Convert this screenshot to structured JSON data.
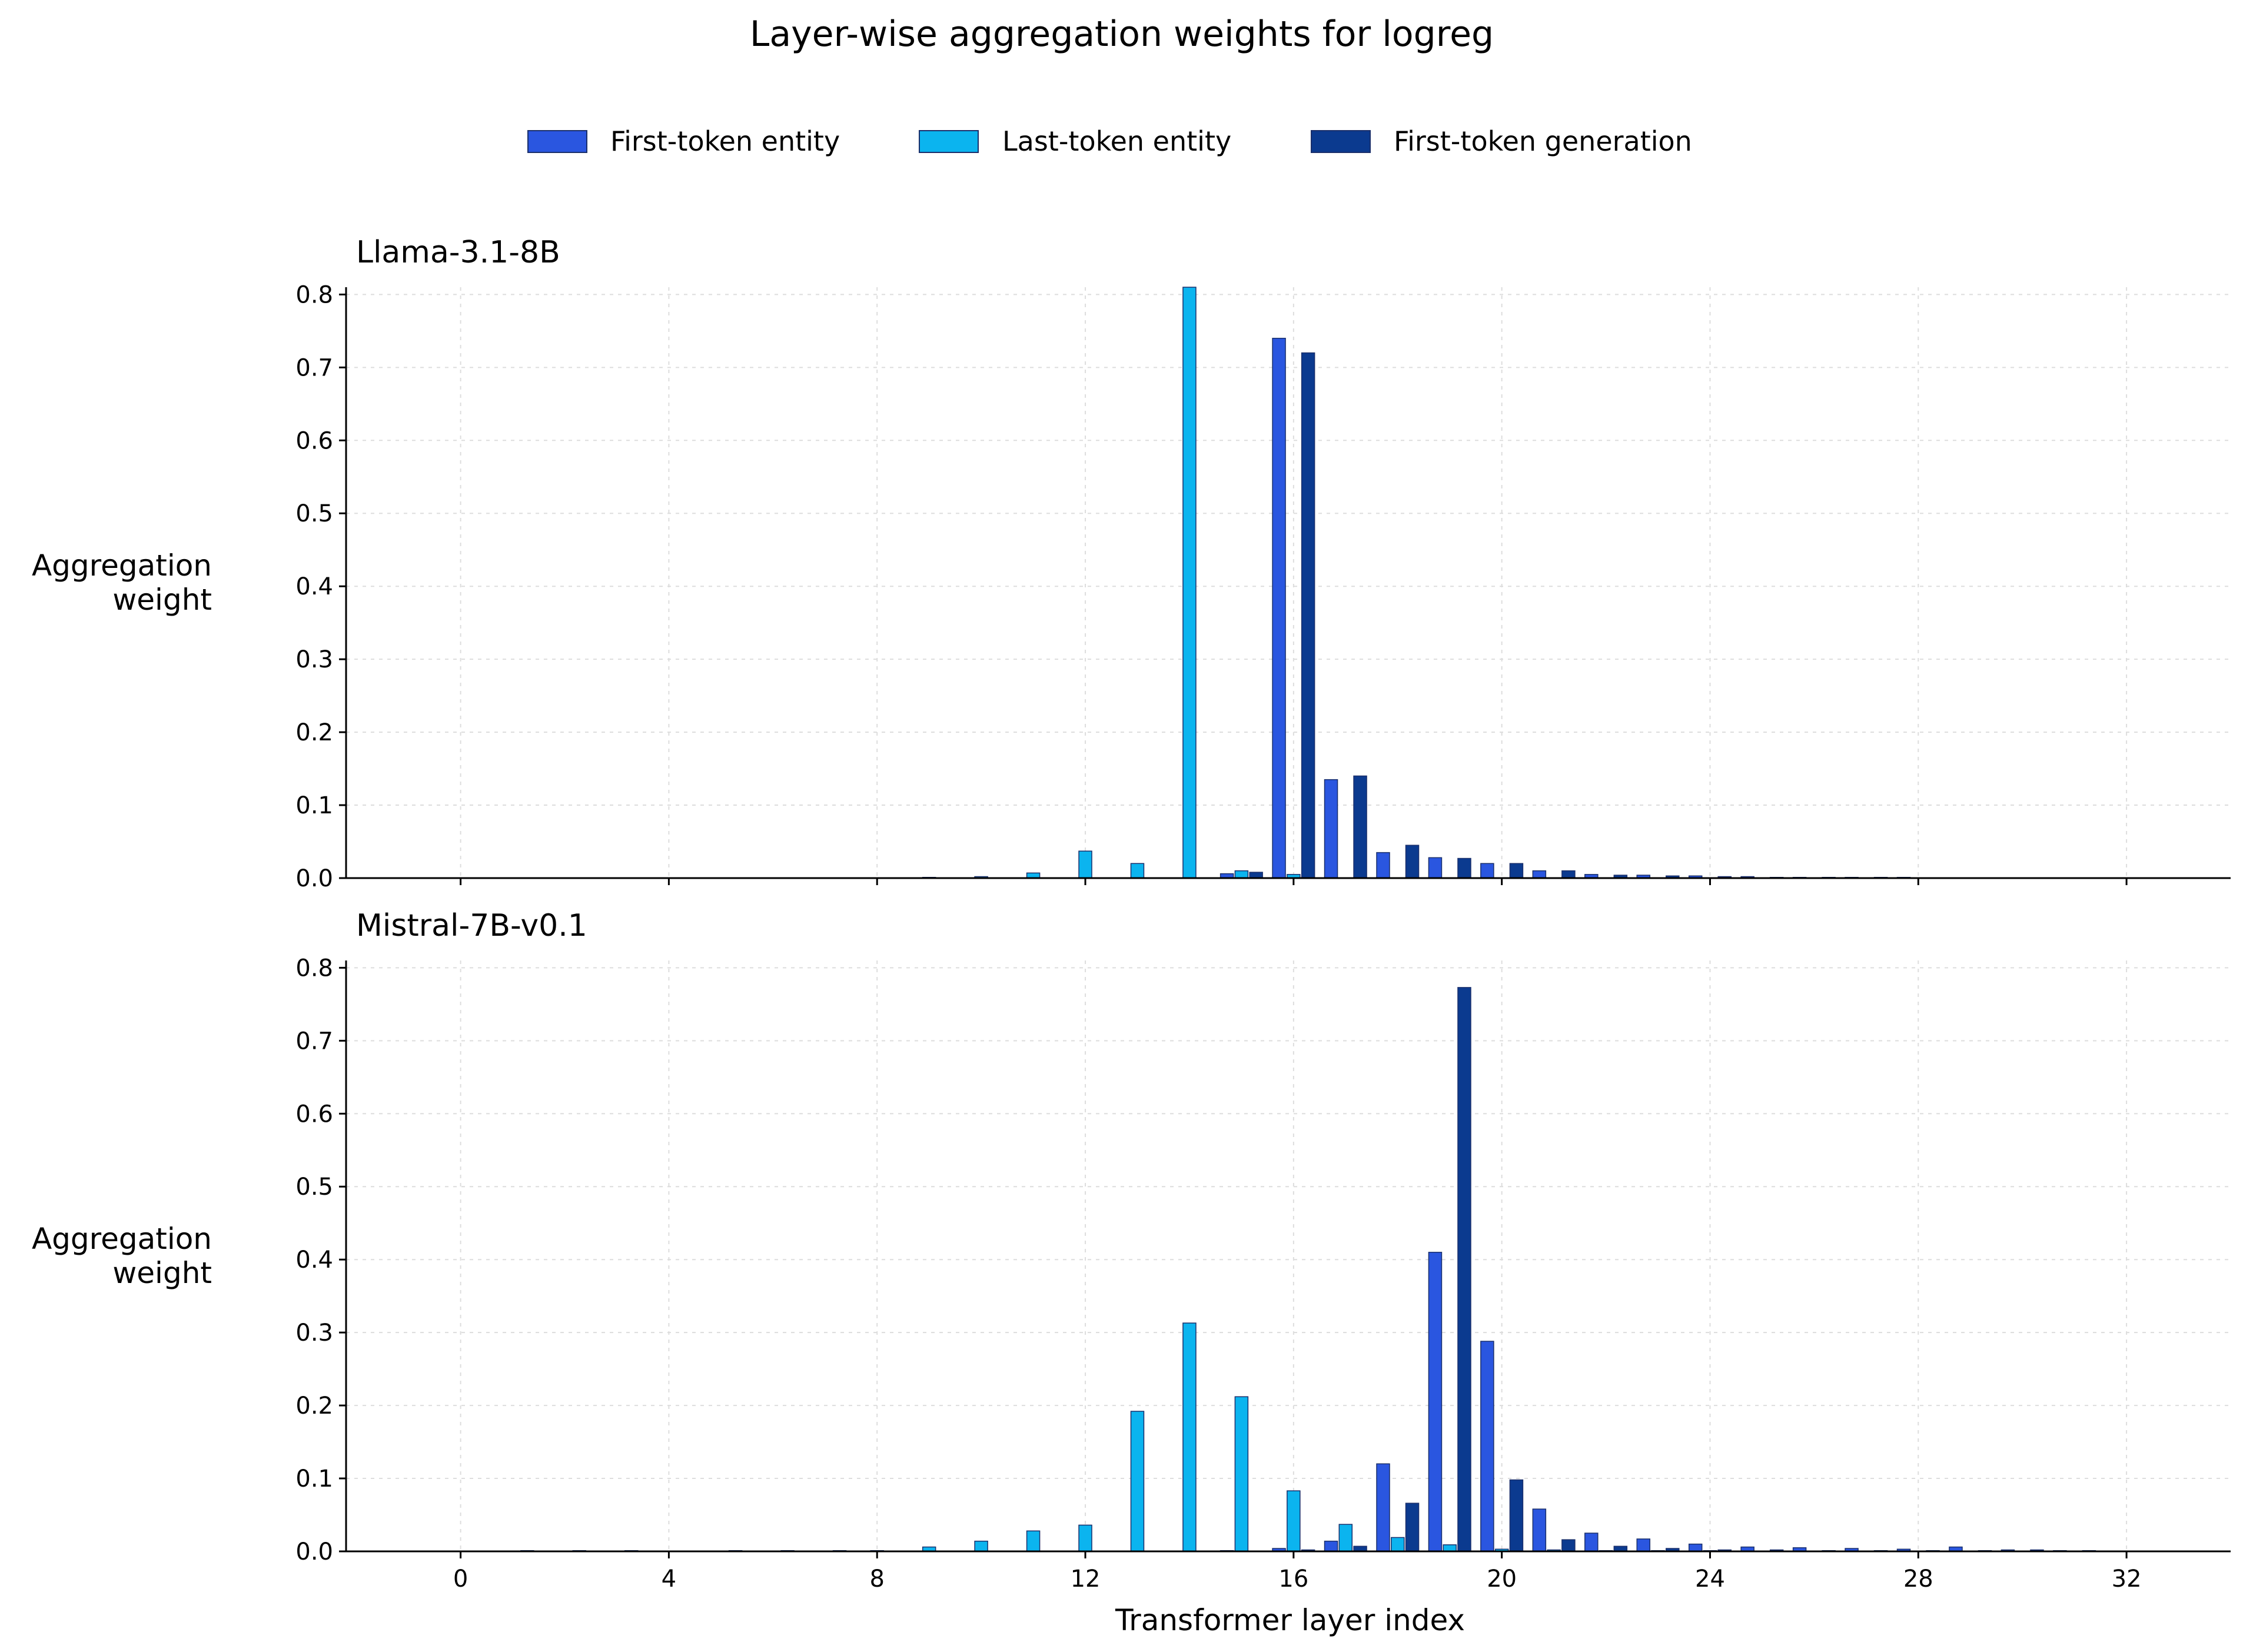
{
  "figure": {
    "title": "Layer-wise aggregation weights for logreg",
    "xlabel": "Transformer layer index"
  },
  "legend": [
    {
      "label": "First-token entity",
      "color": "#2a56e0"
    },
    {
      "label": "Last-token entity",
      "color": "#0bb4ef"
    },
    {
      "label": "First-token generation",
      "color": "#0b3a8f"
    }
  ],
  "chart_data": [
    {
      "type": "bar",
      "title": "Llama-3.1-8B",
      "ylabel": "Aggregation weight",
      "xlabel": "",
      "xlim": [
        -2.2,
        34
      ],
      "ylim": [
        0,
        0.81
      ],
      "xticks": [
        0,
        4,
        8,
        12,
        16,
        20,
        24,
        28,
        32
      ],
      "yticks": [
        0.0,
        0.1,
        0.2,
        0.3,
        0.4,
        0.5,
        0.6,
        0.7,
        0.8
      ],
      "grid": true,
      "x": [
        0,
        1,
        2,
        3,
        4,
        5,
        6,
        7,
        8,
        9,
        10,
        11,
        12,
        13,
        14,
        15,
        16,
        17,
        18,
        19,
        20,
        21,
        22,
        23,
        24,
        25,
        26,
        27,
        28,
        29,
        30,
        31
      ],
      "series": [
        {
          "name": "First-token entity",
          "values": [
            0,
            0,
            0,
            0,
            0,
            0,
            0,
            0,
            0,
            0,
            0,
            0,
            0,
            0,
            0,
            0.006,
            0.74,
            0.135,
            0.035,
            0.028,
            0.02,
            0.01,
            0.005,
            0.004,
            0.003,
            0.002,
            0.001,
            0.001,
            0.001,
            0,
            0,
            0
          ]
        },
        {
          "name": "Last-token entity",
          "values": [
            0,
            0,
            0,
            0,
            0,
            0,
            0,
            0,
            0,
            0.001,
            0.002,
            0.007,
            0.037,
            0.02,
            0.81,
            0.01,
            0.005,
            0,
            0,
            0,
            0,
            0,
            0,
            0,
            0,
            0,
            0,
            0,
            0,
            0,
            0,
            0
          ]
        },
        {
          "name": "First-token generation",
          "values": [
            0,
            0,
            0,
            0,
            0,
            0,
            0,
            0,
            0,
            0,
            0,
            0,
            0,
            0,
            0,
            0.008,
            0.72,
            0.14,
            0.045,
            0.027,
            0.02,
            0.01,
            0.004,
            0.003,
            0.002,
            0.001,
            0.001,
            0.001,
            0,
            0,
            0,
            0
          ]
        }
      ]
    },
    {
      "type": "bar",
      "title": "Mistral-7B-v0.1",
      "ylabel": "Aggregation weight",
      "xlabel": "Transformer layer index",
      "xlim": [
        -2.2,
        34
      ],
      "ylim": [
        0,
        0.81
      ],
      "xticks": [
        0,
        4,
        8,
        12,
        16,
        20,
        24,
        28,
        32
      ],
      "yticks": [
        0.0,
        0.1,
        0.2,
        0.3,
        0.4,
        0.5,
        0.6,
        0.7,
        0.8
      ],
      "grid": true,
      "x": [
        0,
        1,
        2,
        3,
        4,
        5,
        6,
        7,
        8,
        9,
        10,
        11,
        12,
        13,
        14,
        15,
        16,
        17,
        18,
        19,
        20,
        21,
        22,
        23,
        24,
        25,
        26,
        27,
        28,
        29,
        30,
        31
      ],
      "series": [
        {
          "name": "First-token entity",
          "values": [
            0,
            0,
            0,
            0,
            0,
            0,
            0,
            0,
            0,
            0,
            0,
            0,
            0,
            0,
            0,
            0.001,
            0.004,
            0.014,
            0.12,
            0.41,
            0.288,
            0.058,
            0.025,
            0.017,
            0.01,
            0.006,
            0.005,
            0.004,
            0.003,
            0.006,
            0.002,
            0.001
          ]
        },
        {
          "name": "Last-token entity",
          "values": [
            0,
            0,
            0,
            0,
            0,
            0,
            0,
            0,
            0.001,
            0.006,
            0.014,
            0.028,
            0.036,
            0.192,
            0.313,
            0.212,
            0.083,
            0.037,
            0.019,
            0.009,
            0.003,
            0.002,
            0.001,
            0.001,
            0.001,
            0,
            0,
            0,
            0,
            0,
            0,
            0
          ]
        },
        {
          "name": "First-token generation",
          "values": [
            0,
            0.001,
            0.001,
            0.001,
            0,
            0.001,
            0.001,
            0.001,
            0,
            0,
            0,
            0,
            0,
            0,
            0,
            0,
            0.002,
            0.007,
            0.066,
            0.773,
            0.098,
            0.016,
            0.007,
            0.004,
            0.002,
            0.002,
            0.001,
            0.001,
            0.001,
            0.001,
            0.002,
            0.001
          ]
        }
      ]
    }
  ]
}
